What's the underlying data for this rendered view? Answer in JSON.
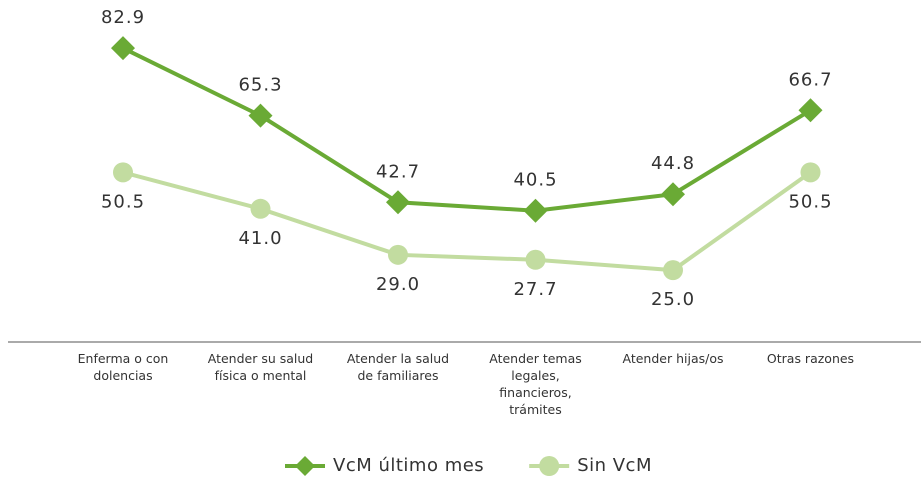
{
  "chart_data": {
    "type": "line",
    "categories": [
      "Enferma o con dolencias",
      "Atender su salud física o mental",
      "Atender la salud de familiares",
      "Atender temas legales, financieros, trámites",
      "Atender hijas/os",
      "Otras razones"
    ],
    "series": [
      {
        "name": "VcM último mes",
        "color": "#6aaa35",
        "marker": "diamond",
        "values": [
          82.9,
          65.3,
          42.7,
          40.5,
          44.8,
          66.7
        ],
        "value_labels": [
          "82.9",
          "65.3",
          "42.7",
          "40.5",
          "44.8",
          "66.7"
        ]
      },
      {
        "name": "Sin VcM",
        "color": "#c2dca0",
        "marker": "circle",
        "values": [
          50.5,
          41.0,
          29.0,
          27.7,
          25.0,
          50.5
        ],
        "value_labels": [
          "50.5",
          "41.0",
          "29.0",
          "27.7",
          "25.0",
          "50.5"
        ]
      }
    ],
    "legend": "bottom"
  }
}
